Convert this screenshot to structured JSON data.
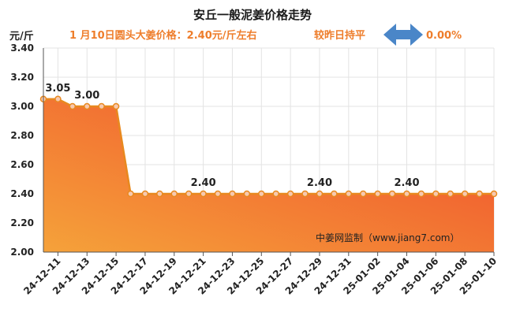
{
  "header": {
    "title": "安丘一般泥姜价格走势",
    "unit": "元/斤",
    "price_info": "1 月10日圆头大姜价格：2.40元/斤左右",
    "compare_label": "较昨日持平",
    "change_pct": "0.00%"
  },
  "watermark": "中姜网监制（www.jiang7.com）",
  "colors": {
    "accent": "#ee7d2b",
    "line": "#e8891f",
    "arrow": "#4a86c8",
    "fill_top": "#f04a2c",
    "fill_bottom": "#f5a23a"
  },
  "chart_data": {
    "type": "area",
    "title": "安丘一般泥姜价格走势",
    "ylabel": "元/斤",
    "ylim": [
      2.0,
      3.4
    ],
    "yticks": [
      "2.00",
      "2.20",
      "2.40",
      "2.60",
      "2.80",
      "3.00",
      "3.20",
      "3.40"
    ],
    "grid": true,
    "x_ticks": [
      "24-12-11",
      "24-12-13",
      "24-12-15",
      "24-12-17",
      "24-12-19",
      "24-12-21",
      "24-12-23",
      "24-12-25",
      "24-12-27",
      "24-12-29",
      "24-12-31",
      "25-01-02",
      "25-01-04",
      "25-01-06",
      "25-01-08",
      "25-01-10"
    ],
    "x": [
      "24-12-10",
      "24-12-11",
      "24-12-12",
      "24-12-13",
      "24-12-14",
      "24-12-15",
      "24-12-16",
      "24-12-17",
      "24-12-18",
      "24-12-19",
      "24-12-20",
      "24-12-21",
      "24-12-22",
      "24-12-23",
      "24-12-24",
      "24-12-25",
      "24-12-26",
      "24-12-27",
      "24-12-28",
      "24-12-29",
      "24-12-30",
      "24-12-31",
      "25-01-01",
      "25-01-02",
      "25-01-03",
      "25-01-04",
      "25-01-05",
      "25-01-06",
      "25-01-07",
      "25-01-08",
      "25-01-09",
      "25-01-10"
    ],
    "values": [
      3.05,
      3.05,
      3.0,
      3.0,
      3.0,
      3.0,
      2.4,
      2.4,
      2.4,
      2.4,
      2.4,
      2.4,
      2.4,
      2.4,
      2.4,
      2.4,
      2.4,
      2.4,
      2.4,
      2.4,
      2.4,
      2.4,
      2.4,
      2.4,
      2.4,
      2.4,
      2.4,
      2.4,
      2.4,
      2.4,
      2.4,
      2.4
    ],
    "data_labels": [
      {
        "x": "24-12-11",
        "text": "3.05"
      },
      {
        "x": "24-12-13",
        "text": "3.00"
      },
      {
        "x": "24-12-21",
        "text": "2.40"
      },
      {
        "x": "24-12-29",
        "text": "2.40"
      },
      {
        "x": "25-01-04",
        "text": "2.40"
      }
    ]
  }
}
